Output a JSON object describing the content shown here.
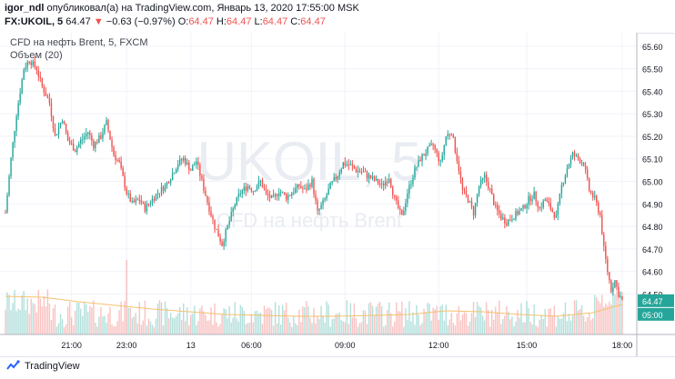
{
  "header": {
    "user": "igor_ndl",
    "published_text": "опубликовал(а) на TradingView.com, Январь 13, 2020 17:55:00 MSK",
    "symbol": "FX:UKOIL, 5",
    "last": "64.47",
    "change_arrow": "▼",
    "change": "−0.63 (−0.97%)",
    "o_label": "O:",
    "o_value": "64.47",
    "h_label": "H:",
    "h_value": "64.47",
    "l_label": "L:",
    "l_value": "64.47",
    "c_label": "C:",
    "c_value": "64.47"
  },
  "legend": {
    "title": "CFD на нефть Brent, 5, FXCM",
    "volume": "Объем (20)"
  },
  "watermark": {
    "symbol": "UKOIL, 5",
    "description": "CFD на нефть Brent"
  },
  "footer": {
    "brand": "TradingView"
  },
  "chart_data": {
    "type": "candlestick",
    "title": "CFD на нефть Brent, 5, FXCM",
    "ylim": [
      64.32,
      65.66
    ],
    "y_ticks": [
      "65.60",
      "65.50",
      "65.40",
      "65.30",
      "65.20",
      "65.10",
      "65.00",
      "64.90",
      "64.80",
      "64.70",
      "64.60",
      "64.50"
    ],
    "x_ticks": [
      "21:00",
      "23:00",
      "13",
      "06:00",
      "09:00",
      "12:00",
      "15:00",
      "18:00"
    ],
    "price_badge": "64.47",
    "time_badge": "05:00",
    "colors": {
      "up": "#26a69a",
      "down": "#ef5350",
      "line": "#f5c16c",
      "axis_badge": "#26a69a",
      "time_badge": "#26a69a"
    },
    "close_path": [
      [
        0,
        64.86
      ],
      [
        3,
        65.1
      ],
      [
        6,
        65.3
      ],
      [
        10,
        65.5
      ],
      [
        13,
        65.54
      ],
      [
        17,
        65.5
      ],
      [
        20,
        65.42
      ],
      [
        24,
        65.35
      ],
      [
        27,
        65.2
      ],
      [
        31,
        65.28
      ],
      [
        34,
        65.18
      ],
      [
        38,
        65.14
      ],
      [
        41,
        65.18
      ],
      [
        45,
        65.22
      ],
      [
        48,
        65.16
      ],
      [
        52,
        65.2
      ],
      [
        55,
        65.26
      ],
      [
        59,
        65.12
      ],
      [
        62,
        65.08
      ],
      [
        66,
        64.95
      ],
      [
        69,
        64.9
      ],
      [
        73,
        64.92
      ],
      [
        76,
        64.88
      ],
      [
        80,
        64.92
      ],
      [
        83,
        64.95
      ],
      [
        87,
        64.98
      ],
      [
        90,
        65.02
      ],
      [
        94,
        65.08
      ],
      [
        97,
        65.1
      ],
      [
        101,
        65.05
      ],
      [
        104,
        65.09
      ],
      [
        107,
        65.0
      ],
      [
        111,
        64.88
      ],
      [
        114,
        64.8
      ],
      [
        118,
        64.72
      ],
      [
        121,
        64.8
      ],
      [
        125,
        64.9
      ],
      [
        128,
        64.95
      ],
      [
        132,
        64.98
      ],
      [
        135,
        64.96
      ],
      [
        139,
        65.0
      ],
      [
        142,
        64.94
      ],
      [
        146,
        64.92
      ],
      [
        149,
        64.96
      ],
      [
        153,
        64.93
      ],
      [
        156,
        64.95
      ],
      [
        160,
        64.98
      ],
      [
        163,
        64.96
      ],
      [
        167,
        65.0
      ],
      [
        170,
        64.86
      ],
      [
        174,
        64.92
      ],
      [
        177,
        64.98
      ],
      [
        181,
        65.03
      ],
      [
        184,
        65.08
      ],
      [
        188,
        65.07
      ],
      [
        191,
        65.05
      ],
      [
        195,
        65.04
      ],
      [
        198,
        65.02
      ],
      [
        202,
        65.0
      ],
      [
        205,
        64.98
      ],
      [
        209,
        65.02
      ],
      [
        212,
        64.92
      ],
      [
        216,
        64.84
      ],
      [
        219,
        64.95
      ],
      [
        223,
        65.05
      ],
      [
        226,
        65.1
      ],
      [
        230,
        65.14
      ],
      [
        233,
        65.16
      ],
      [
        237,
        65.08
      ],
      [
        240,
        65.2
      ],
      [
        243,
        65.22
      ],
      [
        246,
        65.1
      ],
      [
        249,
        64.96
      ],
      [
        252,
        64.92
      ],
      [
        255,
        64.86
      ],
      [
        258,
        64.98
      ],
      [
        261,
        65.02
      ],
      [
        264,
        64.96
      ],
      [
        267,
        64.88
      ],
      [
        270,
        64.84
      ],
      [
        273,
        64.82
      ],
      [
        276,
        64.84
      ],
      [
        279,
        64.86
      ],
      [
        282,
        64.88
      ],
      [
        285,
        64.92
      ],
      [
        288,
        64.94
      ],
      [
        291,
        64.88
      ],
      [
        294,
        64.92
      ],
      [
        297,
        64.88
      ],
      [
        300,
        64.84
      ],
      [
        303,
        64.98
      ],
      [
        306,
        65.06
      ],
      [
        309,
        65.12
      ],
      [
        312,
        65.1
      ],
      [
        315,
        65.08
      ],
      [
        318,
        64.96
      ],
      [
        321,
        64.92
      ],
      [
        324,
        64.85
      ],
      [
        326,
        64.7
      ],
      [
        328,
        64.6
      ],
      [
        330,
        64.52
      ],
      [
        332,
        64.56
      ],
      [
        334,
        64.5
      ],
      [
        336,
        64.47
      ]
    ],
    "volume_line": [
      [
        0,
        0.42
      ],
      [
        20,
        0.41
      ],
      [
        40,
        0.36
      ],
      [
        60,
        0.32
      ],
      [
        80,
        0.28
      ],
      [
        100,
        0.25
      ],
      [
        120,
        0.22
      ],
      [
        140,
        0.21
      ],
      [
        160,
        0.2
      ],
      [
        180,
        0.2
      ],
      [
        200,
        0.21
      ],
      [
        220,
        0.22
      ],
      [
        240,
        0.26
      ],
      [
        260,
        0.25
      ],
      [
        280,
        0.22
      ],
      [
        300,
        0.2
      ],
      [
        320,
        0.24
      ],
      [
        336,
        0.33
      ]
    ]
  }
}
